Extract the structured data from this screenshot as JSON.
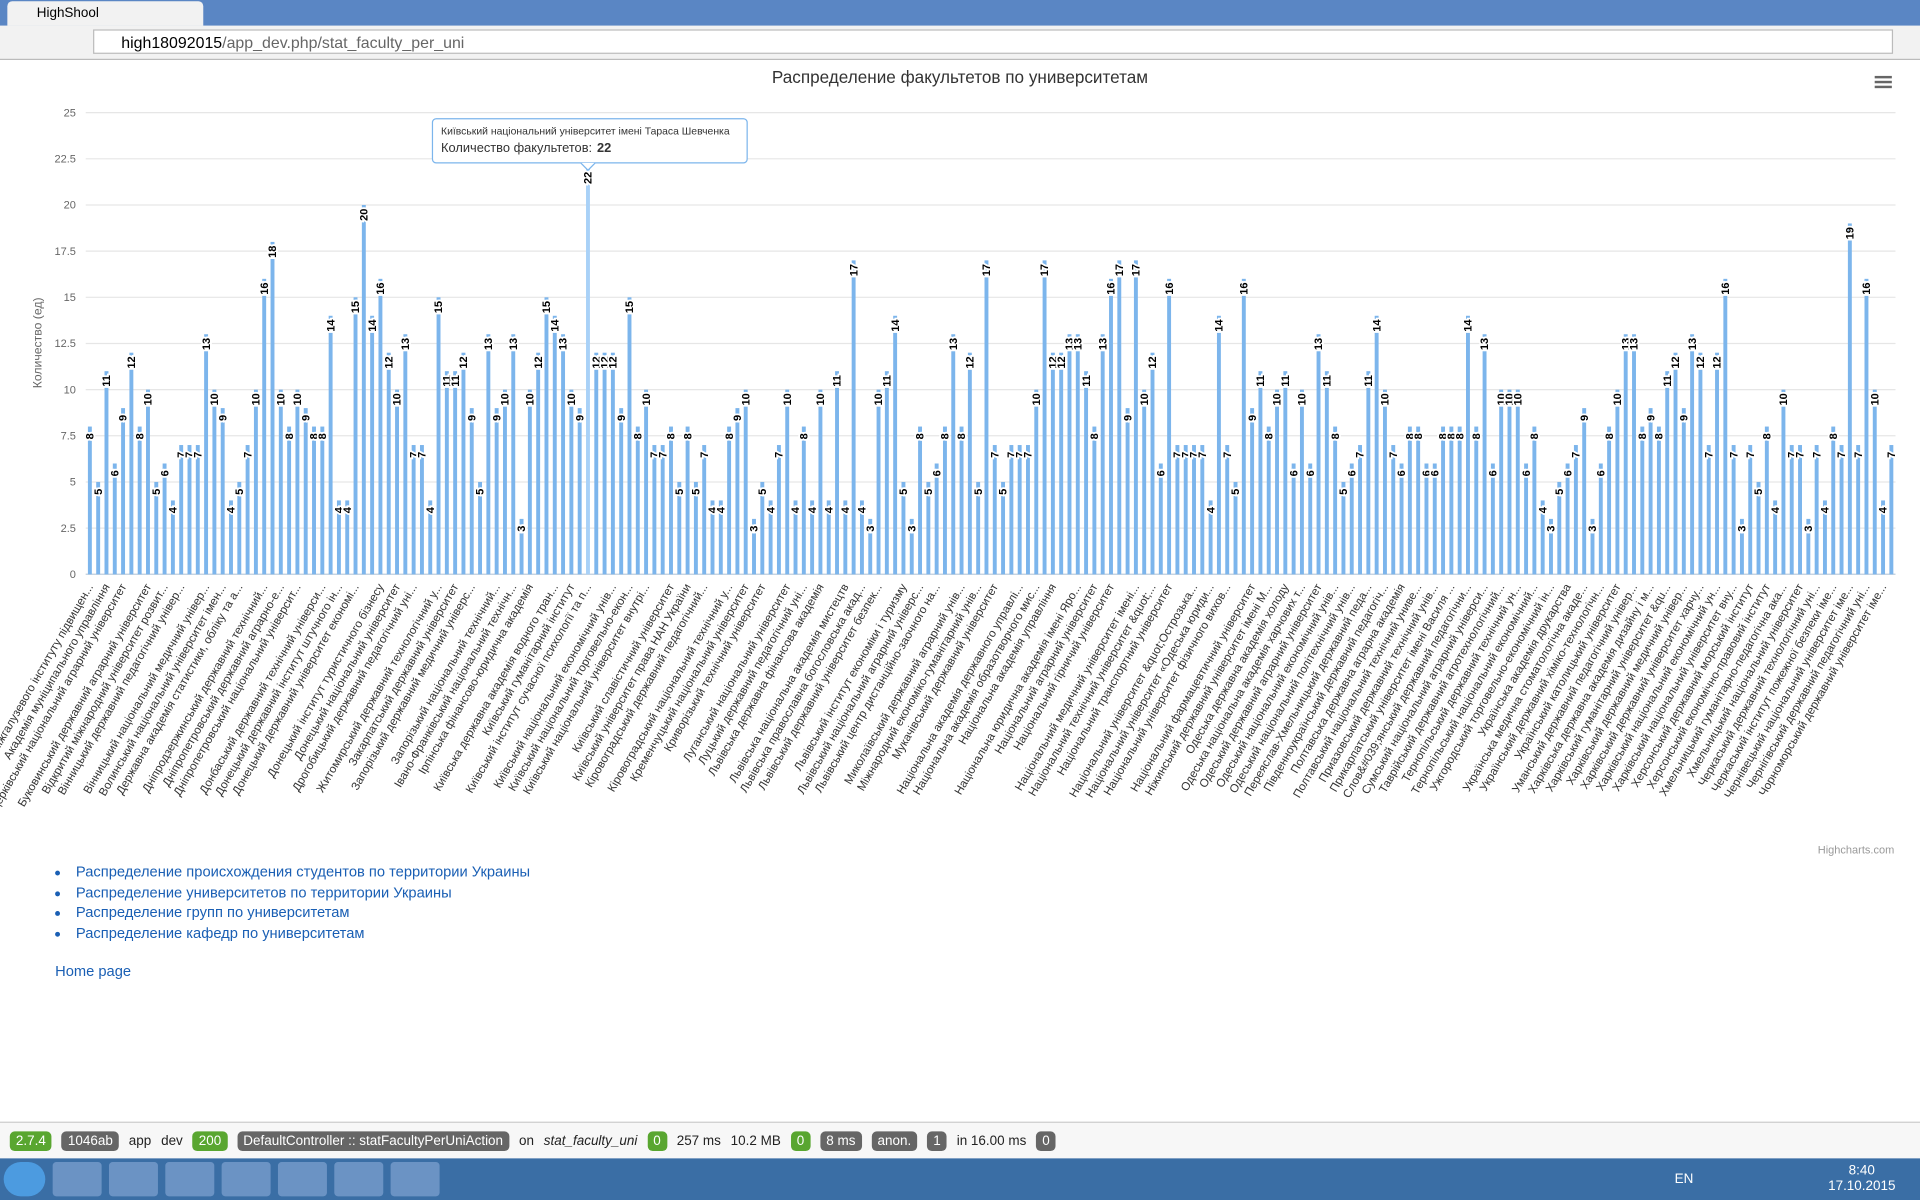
{
  "browser": {
    "tab_title": "HighShool",
    "url_host": "high18092015",
    "url_path": "/app_dev.php/stat_faculty_per_uni"
  },
  "chart_data": {
    "type": "bar",
    "title": "Распределение факультетов по университетам",
    "y_label": "Количество (ед)",
    "color": "#7cb5ec",
    "highlight_color": "#a9d1f7",
    "grid": true,
    "credits": "Highcharts.com",
    "ylim": [
      0,
      25
    ],
    "yticks": [
      0,
      2.5,
      5,
      7.5,
      10,
      12.5,
      15,
      17.5,
      20,
      22.5,
      25
    ],
    "tooltip": {
      "index": 60,
      "name": "Київський національний університет імені Тараса Шевченка",
      "label": "Количество факультетов:"
    },
    "categories": [
      "МВА від Міжгалузевого інституту підвищен...",
      null,
      "Академія муніципального управління",
      null,
      "Білоцерківський національний аграрний університет",
      null,
      null,
      "Буковинський державний аграрний університет",
      null,
      "Відкритий міжнародний університет розвит...",
      null,
      "Вінницький державний педагогічний універ...",
      null,
      null,
      "Вінницький національний медичний універ...",
      null,
      "Волинський національний університет імен...",
      null,
      "Державна академія статистики, обліку та а...",
      null,
      null,
      "Дніпродзержинський державний технічний...",
      null,
      "Дніпропетровський державний аграрно-е...",
      null,
      "Дніпропетровський національний університ...",
      null,
      null,
      "Донбаський державний технічний універси...",
      null,
      "Донецький державний інститут штучного ін...",
      null,
      "Донецький державний університет економі...",
      null,
      null,
      "Донецький інститут туристичного бізнесу",
      null,
      "Донецький національний університет",
      null,
      "Дрогобицький державний педагогічний уні...",
      null,
      null,
      "Житомирський державний технологічний у...",
      null,
      "Закарпатський державний університет",
      null,
      "Запорізький державний медичний універс...",
      null,
      null,
      "Запорізький національний технічний...",
      null,
      "Івано-Франківський національний технічн...",
      null,
      "Ірпінська фінансово-юридична академія",
      null,
      null,
      "Київська державна академія водного тран...",
      null,
      "Київський гуманітарний інститут",
      null,
      "Київський інститут сучасної психології та п...",
      null,
      null,
      "Київський національний економічний унів...",
      null,
      "Київський національний торговельно-екон...",
      null,
      "Київський національний університет внутрі...",
      null,
      null,
      "Київський славістичний університет",
      null,
      "Київський університет права НАН України",
      null,
      "Кіровоградський державний педагогічний...",
      null,
      null,
      "Кіровоградський національний технічний у...",
      null,
      "Кременчуцький національний університет",
      null,
      "Криворізький технічний університет",
      null,
      null,
      "Луганський національний університет",
      null,
      "Луцький державний педагогічний уні...",
      null,
      "Львівська державна фінансова академія",
      null,
      null,
      "Львівська національна академія мистецтв",
      null,
      "Львівська православна богословська акад...",
      null,
      "Львівський державний університет безпек...",
      null,
      null,
      "Львівський інститут економіки і туризму",
      null,
      "Львівський національний аграрний універс...",
      null,
      "Львівський центр дистанційно-заочного на...",
      null,
      null,
      "Миколаївський державний аграрний унів...",
      null,
      "Міжнародний економіко-гуманітарний унів...",
      null,
      "Мукачівський державний університет",
      null,
      null,
      "Національна академія державного управлі...",
      null,
      "Національна академія образотворчого мис...",
      null,
      "Національна академія управління",
      null,
      null,
      "Національна юридична академія імені Яро...",
      null,
      "Національний аграрний університет",
      null,
      "Національний гірничий університет",
      null,
      null,
      "Національний медичний університет імені...",
      null,
      "Національний технічний університет &quot;...",
      null,
      "Національний транспортний університет",
      null,
      null,
      "Національний університет &quot;Острозька...",
      null,
      "Національний університет «Одеська юриди...",
      null,
      "Національний університет фізичного вихов...",
      null,
      null,
      "Національний фармацевтичний університет",
      null,
      "Ніжинський державний університет імені М...",
      null,
      "Одеська державна академія холоду",
      null,
      "Одеська національна академія харчових т...",
      null,
      "Одеський державний аграрний університет",
      null,
      "Одеський національний економічний унів...",
      null,
      "Одеський національний політехнічний унів...",
      null,
      "Переяслав-Хмельницький державний педа...",
      null,
      "Південноукраїнський державний педагогіч...",
      null,
      "Полтавська державна аграрна академія",
      null,
      "Полтавський національний технічний униве...",
      null,
      "Приазовський державний технічний унів...",
      null,
      "Прикарпатський університет імені Василя ...",
      null,
      "Слов&#039;янський державний педагогічни...",
      null,
      "Сумський національний аграрний універси...",
      null,
      "Таврійський державний агротехнологічний...",
      null,
      "Тернопільський державний технічний ун...",
      null,
      "Тернопільський національний економічний...",
      null,
      "Ужгородський торговельно-економічний ін...",
      null,
      "Українська академія друкарства",
      null,
      "Українська медична стоматологічна акаде...",
      null,
      "Український державний хіміко-технологічн...",
      null,
      "Український католицький університет",
      null,
      "Уманський державний педагогічний універ...",
      null,
      "Харківська державна академія дизайну і м...",
      null,
      "Харківський гуманітарний університет &qu...",
      null,
      "Харківський державний медичний універ...",
      null,
      "Харківський державний університет харчу...",
      null,
      "Харківський національний економічний ун...",
      null,
      "Харківський національний університет вну...",
      null,
      "Херсонський державний морський інститут",
      null,
      "Херсонський економічно-правовий інститут",
      null,
      "Хмельницький гуманітарно-педагогічна ака...",
      null,
      "Хмельницький національний університет",
      null,
      "Черкаський державний технологічний уні...",
      null,
      "Черкаський інститут пожежної безпеки іме...",
      null,
      "Чернівецький національний університет іме...",
      null,
      "Чернігівський державний педагогічний уні...",
      null,
      "Чорноморський державний університет іме...",
      null
    ],
    "values": [
      8,
      5,
      11,
      6,
      9,
      12,
      8,
      10,
      5,
      6,
      4,
      7,
      7,
      7,
      13,
      10,
      9,
      4,
      5,
      7,
      10,
      16,
      18,
      10,
      8,
      10,
      9,
      8,
      8,
      14,
      4,
      4,
      15,
      20,
      14,
      16,
      12,
      10,
      13,
      7,
      7,
      4,
      15,
      11,
      11,
      12,
      9,
      5,
      13,
      9,
      10,
      13,
      3,
      10,
      12,
      15,
      14,
      13,
      10,
      9,
      22,
      12,
      12,
      12,
      9,
      15,
      8,
      10,
      7,
      7,
      8,
      5,
      8,
      5,
      7,
      4,
      4,
      8,
      9,
      10,
      3,
      5,
      4,
      7,
      10,
      4,
      8,
      4,
      10,
      4,
      11,
      4,
      17,
      4,
      3,
      10,
      11,
      14,
      5,
      3,
      8,
      5,
      6,
      8,
      13,
      8,
      12,
      5,
      17,
      7,
      5,
      7,
      7,
      7,
      10,
      17,
      12,
      12,
      13,
      13,
      11,
      8,
      13,
      16,
      17,
      9,
      17,
      10,
      12,
      6,
      16,
      7,
      7,
      7,
      7,
      4,
      14,
      7,
      5,
      16,
      9,
      11,
      8,
      10,
      11,
      6,
      10,
      6,
      13,
      11,
      8,
      5,
      6,
      7,
      11,
      14,
      10,
      7,
      6,
      8,
      8,
      6,
      6,
      8,
      8,
      8,
      14,
      8,
      13,
      6,
      10,
      10,
      10,
      6,
      8,
      4,
      3,
      5,
      6,
      7,
      9,
      3,
      6,
      8,
      10,
      13,
      13,
      8,
      9,
      8,
      11,
      12,
      9,
      13,
      12,
      7,
      12,
      16,
      7,
      3,
      7,
      5,
      8,
      4,
      10,
      7,
      7,
      3,
      7,
      4,
      8,
      7,
      19,
      7,
      16,
      10,
      4,
      7
    ]
  },
  "links": [
    "Распределение происхождения студентов по территории Украины",
    "Распределение университетов по территории Украины",
    "Распределение групп по университетам",
    "Распределение кафедр по университетам"
  ],
  "home_link": "Home page",
  "toolbar": {
    "version": "2.7.4",
    "token": "1046ab",
    "env": "app",
    "mode": "dev",
    "status": "200",
    "controller": "DefaultController",
    "action": "statFacultyPerUniAction",
    "route_prefix": "on",
    "route": "stat_faculty_uni",
    "ajax": "0",
    "time": "257 ms",
    "memory": "10.2 MB",
    "forms": "0",
    "render": "8 ms",
    "user": "anon.",
    "queries": "1",
    "query_time": "in 16.00 ms",
    "events": "0"
  },
  "taskbar": {
    "lang": "EN",
    "time": "8:40",
    "date": "17.10.2015"
  }
}
